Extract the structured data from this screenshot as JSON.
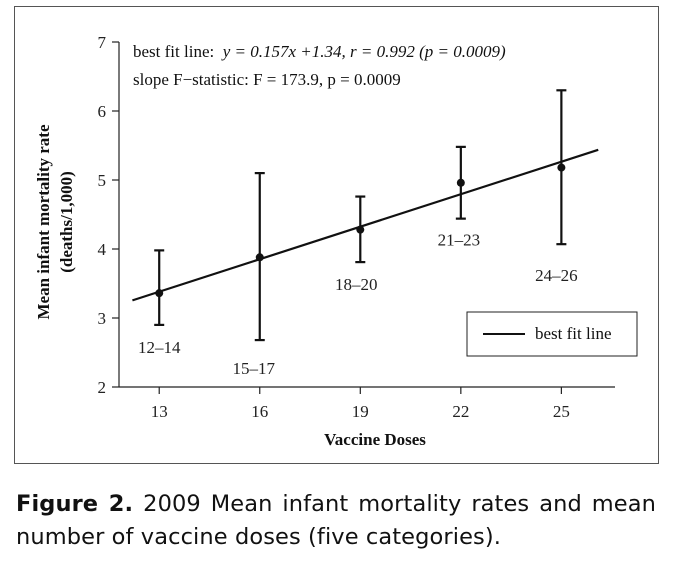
{
  "chart_data": {
    "type": "scatter",
    "xlabel": "Vaccine Doses",
    "ylabel_line1": "Mean infant mortality rate",
    "ylabel_line2": "(deaths/1,000)",
    "xticks": [
      13,
      16,
      19,
      22,
      25
    ],
    "yticks": [
      2,
      3,
      4,
      5,
      6,
      7
    ],
    "xlim": [
      11.8,
      26.6
    ],
    "ylim": [
      2,
      7
    ],
    "points": [
      {
        "x": 13,
        "y": 3.36,
        "lower": 2.9,
        "upper": 3.98,
        "label": "12–14"
      },
      {
        "x": 16,
        "y": 3.88,
        "lower": 2.68,
        "upper": 5.1,
        "label": "15–17"
      },
      {
        "x": 19,
        "y": 4.28,
        "lower": 3.81,
        "upper": 4.76,
        "label": "18–20"
      },
      {
        "x": 22,
        "y": 4.96,
        "lower": 4.44,
        "upper": 5.48,
        "label": "21–23"
      },
      {
        "x": 25,
        "y": 5.18,
        "lower": 4.07,
        "upper": 6.3,
        "label": "24–26"
      }
    ],
    "fit_line": {
      "slope": 0.157,
      "intercept": 1.34,
      "x_start": 12.2,
      "x_end": 26.1
    },
    "annotation_line1": {
      "prefix": "best fit line:  ",
      "eq": "y = 0.157x +1.34, r = 0.992 (p = 0.0009)"
    },
    "annotation_line2": "slope F−statistic: F = 173.9, p = 0.0009",
    "legend": {
      "entry": "best fit line",
      "placement": "bottom-right"
    }
  },
  "caption": {
    "label": "Figure 2.",
    "text": " 2009 Mean infant mortality rates and mean number of vaccine doses (five categories)."
  }
}
